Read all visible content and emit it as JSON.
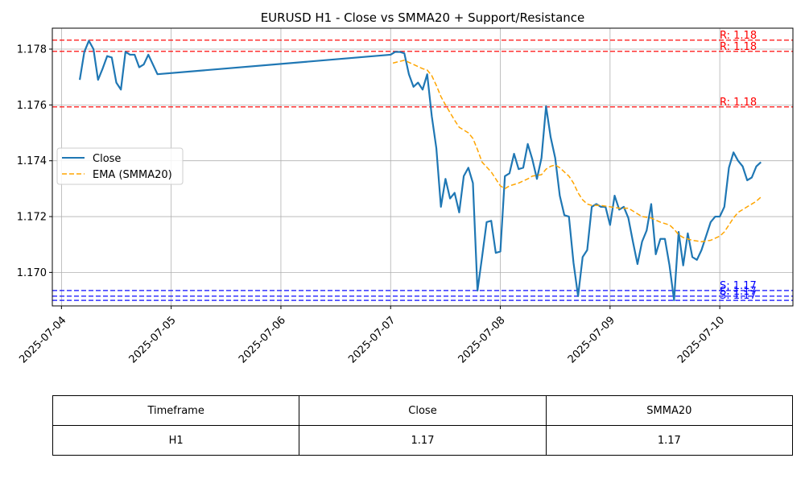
{
  "chart_data": {
    "type": "line",
    "title": "EURUSD H1 - Close vs SMMA20 + Support/Resistance",
    "xlabel": "",
    "ylabel": "",
    "x_tick_labels": [
      "2025-07-04",
      "2025-07-05",
      "2025-07-06",
      "2025-07-07",
      "2025-07-08",
      "2025-07-09",
      "2025-07-10"
    ],
    "y_tick_labels": [
      "1.170",
      "1.172",
      "1.174",
      "1.176",
      "1.178"
    ],
    "xlim": [
      "2025-07-03 22:00",
      "2025-07-10 16:00"
    ],
    "ylim": [
      1.1688,
      1.17875
    ],
    "grid": true,
    "legend_position": "center-left",
    "series": [
      {
        "name": "Close",
        "color": "#1f77b4",
        "style": "solid",
        "points": [
          [
            "2025-07-04 04:00",
            1.1769
          ],
          [
            "2025-07-04 05:00",
            1.1779
          ],
          [
            "2025-07-04 06:00",
            1.1783
          ],
          [
            "2025-07-04 07:00",
            1.178
          ],
          [
            "2025-07-04 08:00",
            1.1769
          ],
          [
            "2025-07-04 09:00",
            1.1773
          ],
          [
            "2025-07-04 10:00",
            1.17775
          ],
          [
            "2025-07-04 11:00",
            1.1777
          ],
          [
            "2025-07-04 12:00",
            1.1768
          ],
          [
            "2025-07-04 13:00",
            1.17655
          ],
          [
            "2025-07-04 14:00",
            1.1779
          ],
          [
            "2025-07-04 15:00",
            1.1778
          ],
          [
            "2025-07-04 16:00",
            1.1778
          ],
          [
            "2025-07-04 17:00",
            1.17735
          ],
          [
            "2025-07-04 18:00",
            1.17745
          ],
          [
            "2025-07-04 19:00",
            1.1778
          ],
          [
            "2025-07-04 20:00",
            1.17745
          ],
          [
            "2025-07-04 21:00",
            1.1771
          ],
          [
            "2025-07-07 00:00",
            1.1778
          ],
          [
            "2025-07-07 01:00",
            1.1779
          ],
          [
            "2025-07-07 02:00",
            1.1779
          ],
          [
            "2025-07-07 03:00",
            1.17785
          ],
          [
            "2025-07-07 04:00",
            1.1771
          ],
          [
            "2025-07-07 05:00",
            1.17665
          ],
          [
            "2025-07-07 06:00",
            1.1768
          ],
          [
            "2025-07-07 07:00",
            1.17655
          ],
          [
            "2025-07-07 08:00",
            1.1771
          ],
          [
            "2025-07-07 09:00",
            1.1756
          ],
          [
            "2025-07-07 10:00",
            1.17445
          ],
          [
            "2025-07-07 11:00",
            1.17235
          ],
          [
            "2025-07-07 12:00",
            1.17335
          ],
          [
            "2025-07-07 13:00",
            1.17265
          ],
          [
            "2025-07-07 14:00",
            1.17285
          ],
          [
            "2025-07-07 15:00",
            1.17215
          ],
          [
            "2025-07-07 16:00",
            1.17345
          ],
          [
            "2025-07-07 17:00",
            1.17375
          ],
          [
            "2025-07-07 18:00",
            1.1732
          ],
          [
            "2025-07-07 19:00",
            1.16935
          ],
          [
            "2025-07-07 20:00",
            1.17055
          ],
          [
            "2025-07-07 21:00",
            1.1718
          ],
          [
            "2025-07-07 22:00",
            1.17185
          ],
          [
            "2025-07-07 23:00",
            1.1707
          ],
          [
            "2025-07-08 00:00",
            1.17075
          ],
          [
            "2025-07-08 01:00",
            1.17345
          ],
          [
            "2025-07-08 02:00",
            1.17355
          ],
          [
            "2025-07-08 03:00",
            1.17425
          ],
          [
            "2025-07-08 04:00",
            1.1737
          ],
          [
            "2025-07-08 05:00",
            1.17375
          ],
          [
            "2025-07-08 06:00",
            1.1746
          ],
          [
            "2025-07-08 07:00",
            1.17405
          ],
          [
            "2025-07-08 08:00",
            1.17335
          ],
          [
            "2025-07-08 09:00",
            1.1741
          ],
          [
            "2025-07-08 10:00",
            1.17595
          ],
          [
            "2025-07-08 11:00",
            1.17485
          ],
          [
            "2025-07-08 12:00",
            1.1741
          ],
          [
            "2025-07-08 13:00",
            1.17275
          ],
          [
            "2025-07-08 14:00",
            1.17205
          ],
          [
            "2025-07-08 15:00",
            1.172
          ],
          [
            "2025-07-08 16:00",
            1.17035
          ],
          [
            "2025-07-08 17:00",
            1.16915
          ],
          [
            "2025-07-08 18:00",
            1.17055
          ],
          [
            "2025-07-08 19:00",
            1.1708
          ],
          [
            "2025-07-08 20:00",
            1.17235
          ],
          [
            "2025-07-08 21:00",
            1.17245
          ],
          [
            "2025-07-08 22:00",
            1.17235
          ],
          [
            "2025-07-08 23:00",
            1.17235
          ],
          [
            "2025-07-09 00:00",
            1.1717
          ],
          [
            "2025-07-09 01:00",
            1.17275
          ],
          [
            "2025-07-09 02:00",
            1.17225
          ],
          [
            "2025-07-09 03:00",
            1.17235
          ],
          [
            "2025-07-09 04:00",
            1.17195
          ],
          [
            "2025-07-09 05:00",
            1.1711
          ],
          [
            "2025-07-09 06:00",
            1.1703
          ],
          [
            "2025-07-09 07:00",
            1.1711
          ],
          [
            "2025-07-09 08:00",
            1.1715
          ],
          [
            "2025-07-09 09:00",
            1.17245
          ],
          [
            "2025-07-09 10:00",
            1.17065
          ],
          [
            "2025-07-09 11:00",
            1.1712
          ],
          [
            "2025-07-09 12:00",
            1.1712
          ],
          [
            "2025-07-09 13:00",
            1.17025
          ],
          [
            "2025-07-09 14:00",
            1.169
          ],
          [
            "2025-07-09 15:00",
            1.17145
          ],
          [
            "2025-07-09 16:00",
            1.17025
          ],
          [
            "2025-07-09 17:00",
            1.1714
          ],
          [
            "2025-07-09 18:00",
            1.17055
          ],
          [
            "2025-07-09 19:00",
            1.17045
          ],
          [
            "2025-07-09 20:00",
            1.1708
          ],
          [
            "2025-07-09 21:00",
            1.1713
          ],
          [
            "2025-07-09 22:00",
            1.1718
          ],
          [
            "2025-07-09 23:00",
            1.172
          ],
          [
            "2025-07-10 00:00",
            1.172
          ],
          [
            "2025-07-10 01:00",
            1.17235
          ],
          [
            "2025-07-10 02:00",
            1.17375
          ],
          [
            "2025-07-10 03:00",
            1.1743
          ],
          [
            "2025-07-10 04:00",
            1.174
          ],
          [
            "2025-07-10 05:00",
            1.1738
          ],
          [
            "2025-07-10 06:00",
            1.1733
          ],
          [
            "2025-07-10 07:00",
            1.1734
          ],
          [
            "2025-07-10 08:00",
            1.1738
          ],
          [
            "2025-07-10 09:00",
            1.17395
          ]
        ]
      },
      {
        "name": "EMA (SMMA20)",
        "color": "#ffa500",
        "style": "dashed",
        "points": [
          [
            "2025-07-07 00:30",
            1.1775
          ],
          [
            "2025-07-07 03:00",
            1.1776
          ],
          [
            "2025-07-07 05:00",
            1.17745
          ],
          [
            "2025-07-07 07:00",
            1.1773
          ],
          [
            "2025-07-07 08:00",
            1.17725
          ],
          [
            "2025-07-07 09:00",
            1.17705
          ],
          [
            "2025-07-07 10:00",
            1.1767
          ],
          [
            "2025-07-07 11:00",
            1.1763
          ],
          [
            "2025-07-07 12:00",
            1.176
          ],
          [
            "2025-07-07 14:00",
            1.17545
          ],
          [
            "2025-07-07 15:00",
            1.1752
          ],
          [
            "2025-07-07 17:00",
            1.175
          ],
          [
            "2025-07-07 18:00",
            1.1748
          ],
          [
            "2025-07-07 19:00",
            1.1744
          ],
          [
            "2025-07-07 20:00",
            1.17395
          ],
          [
            "2025-07-07 22:00",
            1.1736
          ],
          [
            "2025-07-07 23:00",
            1.17335
          ],
          [
            "2025-07-08 00:00",
            1.1731
          ],
          [
            "2025-07-08 01:00",
            1.173
          ],
          [
            "2025-07-08 02:00",
            1.1731
          ],
          [
            "2025-07-08 04:00",
            1.1732
          ],
          [
            "2025-07-08 06:00",
            1.17335
          ],
          [
            "2025-07-08 07:00",
            1.17345
          ],
          [
            "2025-07-08 09:00",
            1.1735
          ],
          [
            "2025-07-08 10:00",
            1.1737
          ],
          [
            "2025-07-08 11:00",
            1.1738
          ],
          [
            "2025-07-08 12:00",
            1.17385
          ],
          [
            "2025-07-08 13:00",
            1.17375
          ],
          [
            "2025-07-08 14:00",
            1.1736
          ],
          [
            "2025-07-08 15:00",
            1.17345
          ],
          [
            "2025-07-08 16:00",
            1.1732
          ],
          [
            "2025-07-08 17:00",
            1.17285
          ],
          [
            "2025-07-08 18:00",
            1.1726
          ],
          [
            "2025-07-08 19:00",
            1.17245
          ],
          [
            "2025-07-08 20:00",
            1.1724
          ],
          [
            "2025-07-08 22:00",
            1.1724
          ],
          [
            "2025-07-09 00:00",
            1.17235
          ],
          [
            "2025-07-09 02:00",
            1.1723
          ],
          [
            "2025-07-09 04:00",
            1.1723
          ],
          [
            "2025-07-09 06:00",
            1.1721
          ],
          [
            "2025-07-09 07:00",
            1.172
          ],
          [
            "2025-07-09 09:00",
            1.17195
          ],
          [
            "2025-07-09 11:00",
            1.1718
          ],
          [
            "2025-07-09 13:00",
            1.1717
          ],
          [
            "2025-07-09 14:00",
            1.17155
          ],
          [
            "2025-07-09 15:00",
            1.17135
          ],
          [
            "2025-07-09 16:00",
            1.17125
          ],
          [
            "2025-07-09 18:00",
            1.17115
          ],
          [
            "2025-07-09 20:00",
            1.1711
          ],
          [
            "2025-07-09 22:00",
            1.17115
          ],
          [
            "2025-07-10 00:00",
            1.1713
          ],
          [
            "2025-07-10 01:00",
            1.17145
          ],
          [
            "2025-07-10 02:00",
            1.1717
          ],
          [
            "2025-07-10 03:00",
            1.17195
          ],
          [
            "2025-07-10 04:00",
            1.17215
          ],
          [
            "2025-07-10 05:00",
            1.17225
          ],
          [
            "2025-07-10 06:00",
            1.17235
          ],
          [
            "2025-07-10 07:00",
            1.17245
          ],
          [
            "2025-07-10 08:00",
            1.17255
          ],
          [
            "2025-07-10 09:00",
            1.1727
          ]
        ]
      }
    ],
    "levels": [
      {
        "kind": "resistance",
        "value": 1.17832,
        "label": "R: 1.18",
        "color": "#ff0000"
      },
      {
        "kind": "resistance",
        "value": 1.17792,
        "label": "R: 1.18",
        "color": "#ff0000"
      },
      {
        "kind": "resistance",
        "value": 1.17593,
        "label": "R: 1.18",
        "color": "#ff0000"
      },
      {
        "kind": "support",
        "value": 1.16935,
        "label": "S: 1.17",
        "color": "#0000ff"
      },
      {
        "kind": "support",
        "value": 1.16915,
        "label": "S: 1.17",
        "color": "#0000ff"
      },
      {
        "kind": "support",
        "value": 1.169,
        "label": "S: 1.17",
        "color": "#0000ff"
      }
    ]
  },
  "table": {
    "headers": [
      "Timeframe",
      "Close",
      "SMMA20"
    ],
    "rows": [
      [
        "H1",
        "1.17",
        "1.17"
      ]
    ]
  }
}
